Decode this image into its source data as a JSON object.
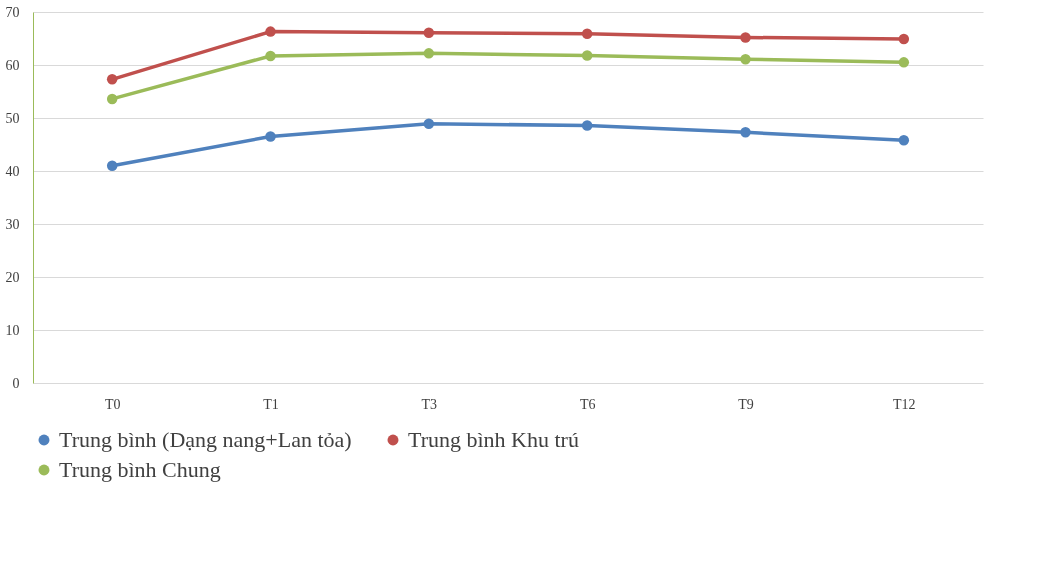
{
  "chart_data": {
    "type": "line",
    "categories": [
      "T0",
      "T1",
      "T3",
      "T6",
      "T9",
      "T12"
    ],
    "series": [
      {
        "name": "Trung bình (Dạng nang+Lan tỏa)",
        "color": "#4f81bd",
        "values": [
          41.0,
          46.5,
          48.9,
          48.6,
          47.3,
          45.8
        ]
      },
      {
        "name": "Trung bình Khu trú",
        "color": "#c0504d",
        "values": [
          57.3,
          66.3,
          66.1,
          65.9,
          65.2,
          64.9
        ]
      },
      {
        "name": "Trung bình Chung",
        "color": "#9bbb59",
        "values": [
          53.6,
          61.7,
          62.2,
          61.8,
          61.1,
          60.5
        ]
      }
    ],
    "ylim": [
      0,
      70
    ],
    "yticks": [
      0,
      10,
      20,
      30,
      40,
      50,
      60,
      70
    ],
    "grid": "y",
    "legend": "bottom",
    "marker": "circle",
    "line_style": "solid"
  }
}
